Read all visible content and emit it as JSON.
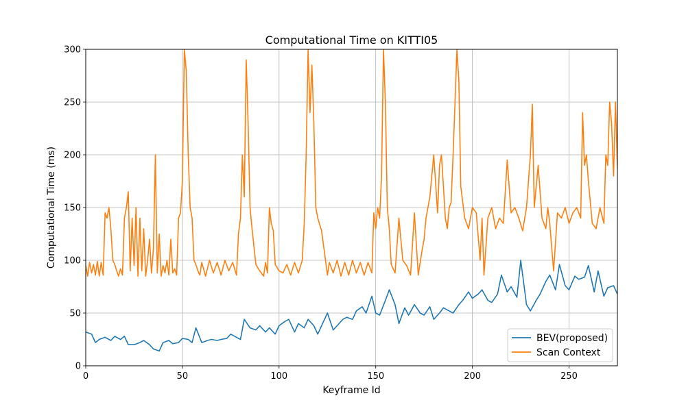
{
  "chart_data": {
    "type": "line",
    "title": "Computational Time on KITTI05",
    "xlabel": "Keyframe Id",
    "ylabel": "Computational Time (ms)",
    "xlim": [
      0,
      275
    ],
    "ylim": [
      0,
      300
    ],
    "xticks": [
      0,
      50,
      100,
      150,
      200,
      250
    ],
    "yticks": [
      0,
      50,
      100,
      150,
      200,
      250,
      300
    ],
    "grid": true,
    "legend_position": "lower-right",
    "series": [
      {
        "name": "BEV(proposed)",
        "color": "#1f77b4",
        "x": [
          0,
          3,
          5,
          7,
          10,
          13,
          15,
          18,
          20,
          22,
          25,
          28,
          30,
          33,
          35,
          38,
          40,
          43,
          45,
          48,
          50,
          53,
          55,
          57,
          60,
          63,
          65,
          68,
          70,
          73,
          75,
          78,
          80,
          82,
          85,
          88,
          90,
          93,
          95,
          98,
          100,
          103,
          105,
          108,
          110,
          113,
          115,
          118,
          120,
          123,
          125,
          128,
          130,
          133,
          135,
          138,
          140,
          143,
          145,
          148,
          150,
          152,
          155,
          157,
          160,
          162,
          165,
          167,
          170,
          173,
          175,
          178,
          180,
          183,
          185,
          188,
          190,
          193,
          195,
          198,
          200,
          203,
          205,
          208,
          210,
          213,
          215,
          218,
          220,
          223,
          225,
          228,
          230,
          233,
          235,
          238,
          240,
          243,
          245,
          248,
          250,
          253,
          255,
          258,
          260,
          263,
          265,
          268,
          270,
          273,
          275
        ],
        "y": [
          32,
          30,
          22,
          25,
          27,
          24,
          28,
          25,
          28,
          20,
          20,
          22,
          24,
          20,
          16,
          14,
          22,
          24,
          21,
          22,
          26,
          25,
          22,
          36,
          22,
          24,
          25,
          24,
          25,
          26,
          30,
          27,
          25,
          44,
          36,
          34,
          38,
          32,
          36,
          30,
          38,
          42,
          44,
          32,
          40,
          36,
          44,
          38,
          30,
          42,
          50,
          34,
          38,
          44,
          46,
          44,
          52,
          56,
          50,
          66,
          50,
          48,
          62,
          72,
          58,
          40,
          55,
          48,
          58,
          50,
          48,
          56,
          44,
          50,
          55,
          52,
          50,
          58,
          62,
          70,
          64,
          68,
          72,
          62,
          60,
          68,
          86,
          70,
          75,
          65,
          100,
          58,
          52,
          62,
          68,
          80,
          86,
          72,
          96,
          76,
          72,
          85,
          82,
          84,
          95,
          70,
          90,
          66,
          74,
          76,
          68
        ]
      },
      {
        "name": "Scan Context",
        "color": "#ff7f0e",
        "x": [
          0,
          1,
          2,
          3,
          4,
          5,
          6,
          7,
          8,
          9,
          10,
          11,
          12,
          13,
          14,
          15,
          16,
          17,
          18,
          19,
          20,
          21,
          22,
          23,
          24,
          25,
          26,
          27,
          28,
          29,
          30,
          31,
          32,
          33,
          34,
          35,
          36,
          37,
          38,
          39,
          40,
          41,
          42,
          43,
          44,
          45,
          46,
          47,
          48,
          49,
          50,
          51,
          52,
          53,
          54,
          55,
          56,
          57,
          58,
          59,
          60,
          62,
          64,
          66,
          68,
          70,
          72,
          74,
          76,
          78,
          79,
          80,
          81,
          82,
          83,
          84,
          85,
          86,
          88,
          90,
          92,
          93,
          94,
          95,
          96,
          97,
          98,
          100,
          102,
          104,
          106,
          108,
          110,
          112,
          113,
          114,
          115,
          116,
          117,
          118,
          119,
          120,
          122,
          124,
          125,
          126,
          128,
          130,
          132,
          134,
          136,
          138,
          140,
          142,
          144,
          146,
          148,
          149,
          150,
          151,
          152,
          153,
          154,
          155,
          156,
          157,
          158,
          160,
          162,
          164,
          166,
          168,
          170,
          172,
          173,
          174,
          175,
          176,
          177,
          178,
          180,
          182,
          183,
          184,
          185,
          186,
          187,
          188,
          189,
          190,
          191,
          192,
          193,
          194,
          196,
          198,
          200,
          202,
          204,
          205,
          206,
          208,
          210,
          212,
          214,
          216,
          218,
          220,
          222,
          224,
          226,
          228,
          230,
          231,
          232,
          234,
          236,
          238,
          239,
          240,
          242,
          244,
          246,
          248,
          250,
          252,
          254,
          256,
          257,
          258,
          259,
          260,
          262,
          264,
          266,
          268,
          269,
          270,
          271,
          272,
          273,
          274,
          275
        ],
        "y": [
          95,
          85,
          98,
          88,
          96,
          86,
          99,
          85,
          98,
          86,
          145,
          140,
          150,
          130,
          100,
          96,
          90,
          85,
          92,
          86,
          140,
          150,
          165,
          90,
          140,
          95,
          150,
          85,
          140,
          90,
          130,
          85,
          100,
          120,
          88,
          110,
          200,
          88,
          125,
          85,
          95,
          88,
          100,
          86,
          120,
          88,
          92,
          86,
          140,
          145,
          175,
          300,
          280,
          200,
          150,
          140,
          100,
          96,
          90,
          86,
          98,
          85,
          100,
          88,
          98,
          86,
          100,
          90,
          98,
          86,
          125,
          140,
          200,
          160,
          290,
          230,
          150,
          130,
          96,
          90,
          85,
          98,
          88,
          150,
          135,
          128,
          96,
          90,
          88,
          96,
          86,
          98,
          88,
          100,
          135,
          200,
          300,
          240,
          285,
          230,
          150,
          140,
          128,
          100,
          86,
          98,
          88,
          100,
          85,
          98,
          86,
          100,
          88,
          98,
          86,
          98,
          88,
          145,
          130,
          150,
          140,
          180,
          300,
          250,
          150,
          130,
          96,
          88,
          140,
          100,
          95,
          86,
          145,
          86,
          98,
          110,
          120,
          140,
          150,
          160,
          200,
          145,
          190,
          200,
          170,
          140,
          130,
          150,
          155,
          200,
          250,
          300,
          270,
          170,
          140,
          130,
          150,
          145,
          100,
          140,
          86,
          140,
          150,
          130,
          140,
          135,
          195,
          145,
          150,
          140,
          128,
          150,
          200,
          248,
          150,
          190,
          140,
          130,
          150,
          135,
          90,
          145,
          140,
          150,
          135,
          145,
          150,
          140,
          240,
          190,
          200,
          175,
          135,
          130,
          150,
          135,
          200,
          190,
          250,
          230,
          180,
          250,
          187
        ]
      }
    ]
  }
}
